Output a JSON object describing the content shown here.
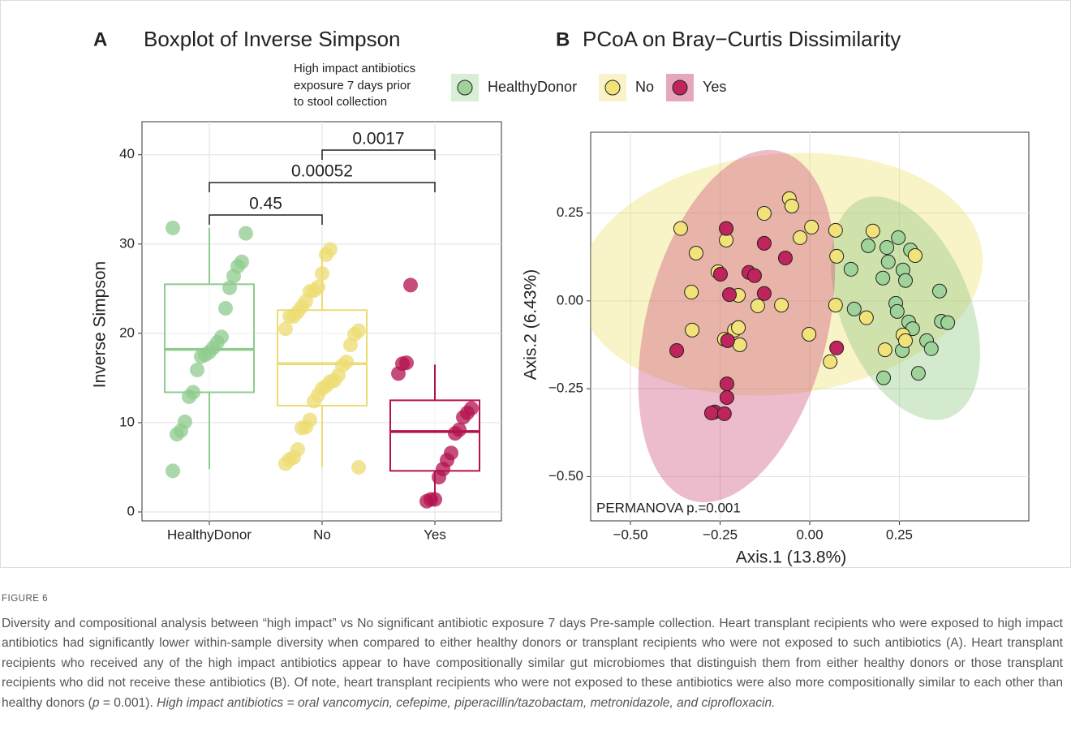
{
  "chart_data": [
    {
      "type": "box",
      "panel": "A",
      "title": "Boxplot of Inverse Simpson",
      "ylabel": "Inverse Simpson",
      "categories": [
        "HealthyDonor",
        "No",
        "Yes"
      ],
      "colors": [
        "#8fcb8d",
        "#ecdc72",
        "#b3124f"
      ],
      "boxes": [
        {
          "whisker_low": 4.8,
          "q1": 13.4,
          "median": 18.2,
          "q3": 25.5,
          "whisker_high": 31.8
        },
        {
          "whisker_low": 5.0,
          "q1": 11.9,
          "median": 16.6,
          "q3": 22.6,
          "whisker_high": 29.5
        },
        {
          "whisker_low": 1.2,
          "q1": 4.6,
          "median": 9.0,
          "q3": 12.5,
          "whisker_high": 16.5
        }
      ],
      "points": [
        [
          31.8,
          31.2,
          28,
          27.5,
          26.4,
          25.1,
          22.8,
          19.6,
          19,
          18.4,
          17.9,
          17.6,
          17.4,
          15.9,
          13.4,
          12.9,
          10.1,
          9.1,
          8.7,
          4.6
        ],
        [
          29.4,
          28.8,
          26.7,
          25.2,
          24.8,
          24.7,
          23.6,
          23,
          22.4,
          21.9,
          21.9,
          20.5,
          20.3,
          19.9,
          18.7,
          16.8,
          16.4,
          15.3,
          14.7,
          14.6,
          14.1,
          13.8,
          13.1,
          12.4,
          10.3,
          9.5,
          9.4,
          7,
          6.1,
          5.9,
          5.4,
          5
        ],
        [
          25.4,
          16.7,
          16.6,
          15.5,
          11.6,
          11.1,
          10.6,
          9.2,
          8.8,
          6.6,
          5.8,
          4.8,
          3.9,
          1.4,
          1.4,
          1.2
        ]
      ],
      "comparisons": [
        {
          "groups": [
            "HealthyDonor",
            "No"
          ],
          "label": 0.45
        },
        {
          "groups": [
            "HealthyDonor",
            "Yes"
          ],
          "label": 0.00052
        },
        {
          "groups": [
            "No",
            "Yes"
          ],
          "label": 0.0017
        }
      ],
      "ylim": [
        -1,
        43.7
      ],
      "yticks": [
        0,
        10,
        20,
        30,
        40
      ],
      "grid": true
    },
    {
      "type": "scatter",
      "panel": "B",
      "title": "PCoA on Bray−Curtis Dissimilarity",
      "xlabel": "Axis.1 (13.8%)",
      "ylabel": "Axis.2 (6.43%)",
      "annotation": "PERMANOVA p.=0.001",
      "legend_title": [
        "High impact antibiotics",
        "exposure 7 days prior",
        "to stool collection"
      ],
      "series": [
        {
          "name": "HealthyDonor",
          "color": "#9fd39a",
          "x": [
            0.247,
            0.163,
            0.215,
            0.281,
            0.219,
            0.115,
            0.204,
            0.26,
            0.267,
            0.362,
            0.24,
            0.244,
            0.124,
            0.276,
            0.287,
            0.367,
            0.385,
            0.326,
            0.339,
            0.258,
            0.303,
            0.206
          ],
          "y": [
            0.18,
            0.157,
            0.152,
            0.145,
            0.111,
            0.09,
            0.065,
            0.088,
            0.058,
            0.028,
            -0.007,
            -0.03,
            -0.023,
            -0.06,
            -0.079,
            -0.058,
            -0.062,
            -0.113,
            -0.136,
            -0.141,
            -0.206,
            -0.219
          ]
        },
        {
          "name": "No",
          "color": "#f2e27a",
          "x": [
            -0.36,
            -0.057,
            -0.05,
            -0.127,
            0.005,
            0.072,
            -0.027,
            -0.233,
            -0.317,
            0.075,
            -0.256,
            -0.33,
            -0.199,
            -0.145,
            -0.079,
            0.072,
            -0.328,
            -0.21,
            -0.199,
            -0.238,
            -0.195,
            -0.002,
            0.057,
            0.21,
            0.26,
            0.267,
            0.176,
            0.294,
            0.158
          ],
          "y": [
            0.206,
            0.291,
            0.27,
            0.249,
            0.21,
            0.201,
            0.18,
            0.173,
            0.136,
            0.127,
            0.083,
            0.025,
            0.016,
            -0.014,
            -0.012,
            -0.012,
            -0.083,
            -0.083,
            -0.076,
            -0.109,
            -0.125,
            -0.095,
            -0.173,
            -0.139,
            -0.097,
            -0.113,
            0.199,
            0.129,
            -0.048
          ]
        },
        {
          "name": "Yes",
          "color": "#c0245c",
          "x": [
            -0.233,
            -0.127,
            -0.068,
            -0.249,
            -0.17,
            -0.154,
            -0.224,
            -0.127,
            -0.371,
            -0.229,
            0.075,
            -0.231,
            -0.231,
            -0.265,
            -0.274,
            -0.238
          ],
          "y": [
            0.206,
            0.164,
            0.122,
            0.076,
            0.081,
            0.072,
            0.018,
            0.021,
            -0.141,
            -0.113,
            -0.134,
            -0.236,
            -0.275,
            -0.316,
            -0.319,
            -0.321
          ]
        }
      ],
      "xlim": [
        -0.611,
        0.611
      ],
      "ylim": [
        -0.626,
        0.48
      ],
      "xticks": [
        {
          "value": -0.5,
          "label": "−0.50"
        },
        {
          "value": -0.25,
          "label": "−0.25"
        },
        {
          "value": 0,
          "label": "0.00"
        },
        {
          "value": 0.25,
          "label": "0.25"
        }
      ],
      "yticks": [
        {
          "value": -0.5,
          "label": "−0.50"
        },
        {
          "value": -0.25,
          "label": "−0.25"
        },
        {
          "value": 0,
          "label": "0.00"
        },
        {
          "value": 0.25,
          "label": "0.25"
        }
      ],
      "grid": true
    }
  ],
  "caption": {
    "label": "FIGURE 6",
    "text": "Diversity and compositional analysis between “high impact” vs No significant antibiotic exposure 7 days Pre-sample collection. Heart transplant recipients who were exposed to high impact antibiotics had significantly lower within-sample diversity when compared to either healthy donors or transplant recipients who were not exposed to such antibiotics (A). Heart transplant recipients who received any of the high impact antibiotics appear to have compositionally similar gut microbiomes that distinguish them from either healthy donors or those transplant recipients who did not receive these antibiotics (B). Of note, heart transplant recipients who were not exposed to these antibiotics were also more compositionally similar to each other than healthy donors (",
    "p": "p",
    "text_2": " = 0.001). ",
    "note": "High impact antibiotics = oral vancomycin, cefepime, piperacillin/tazobactam, metronidazole, and ciprofloxacin."
  }
}
